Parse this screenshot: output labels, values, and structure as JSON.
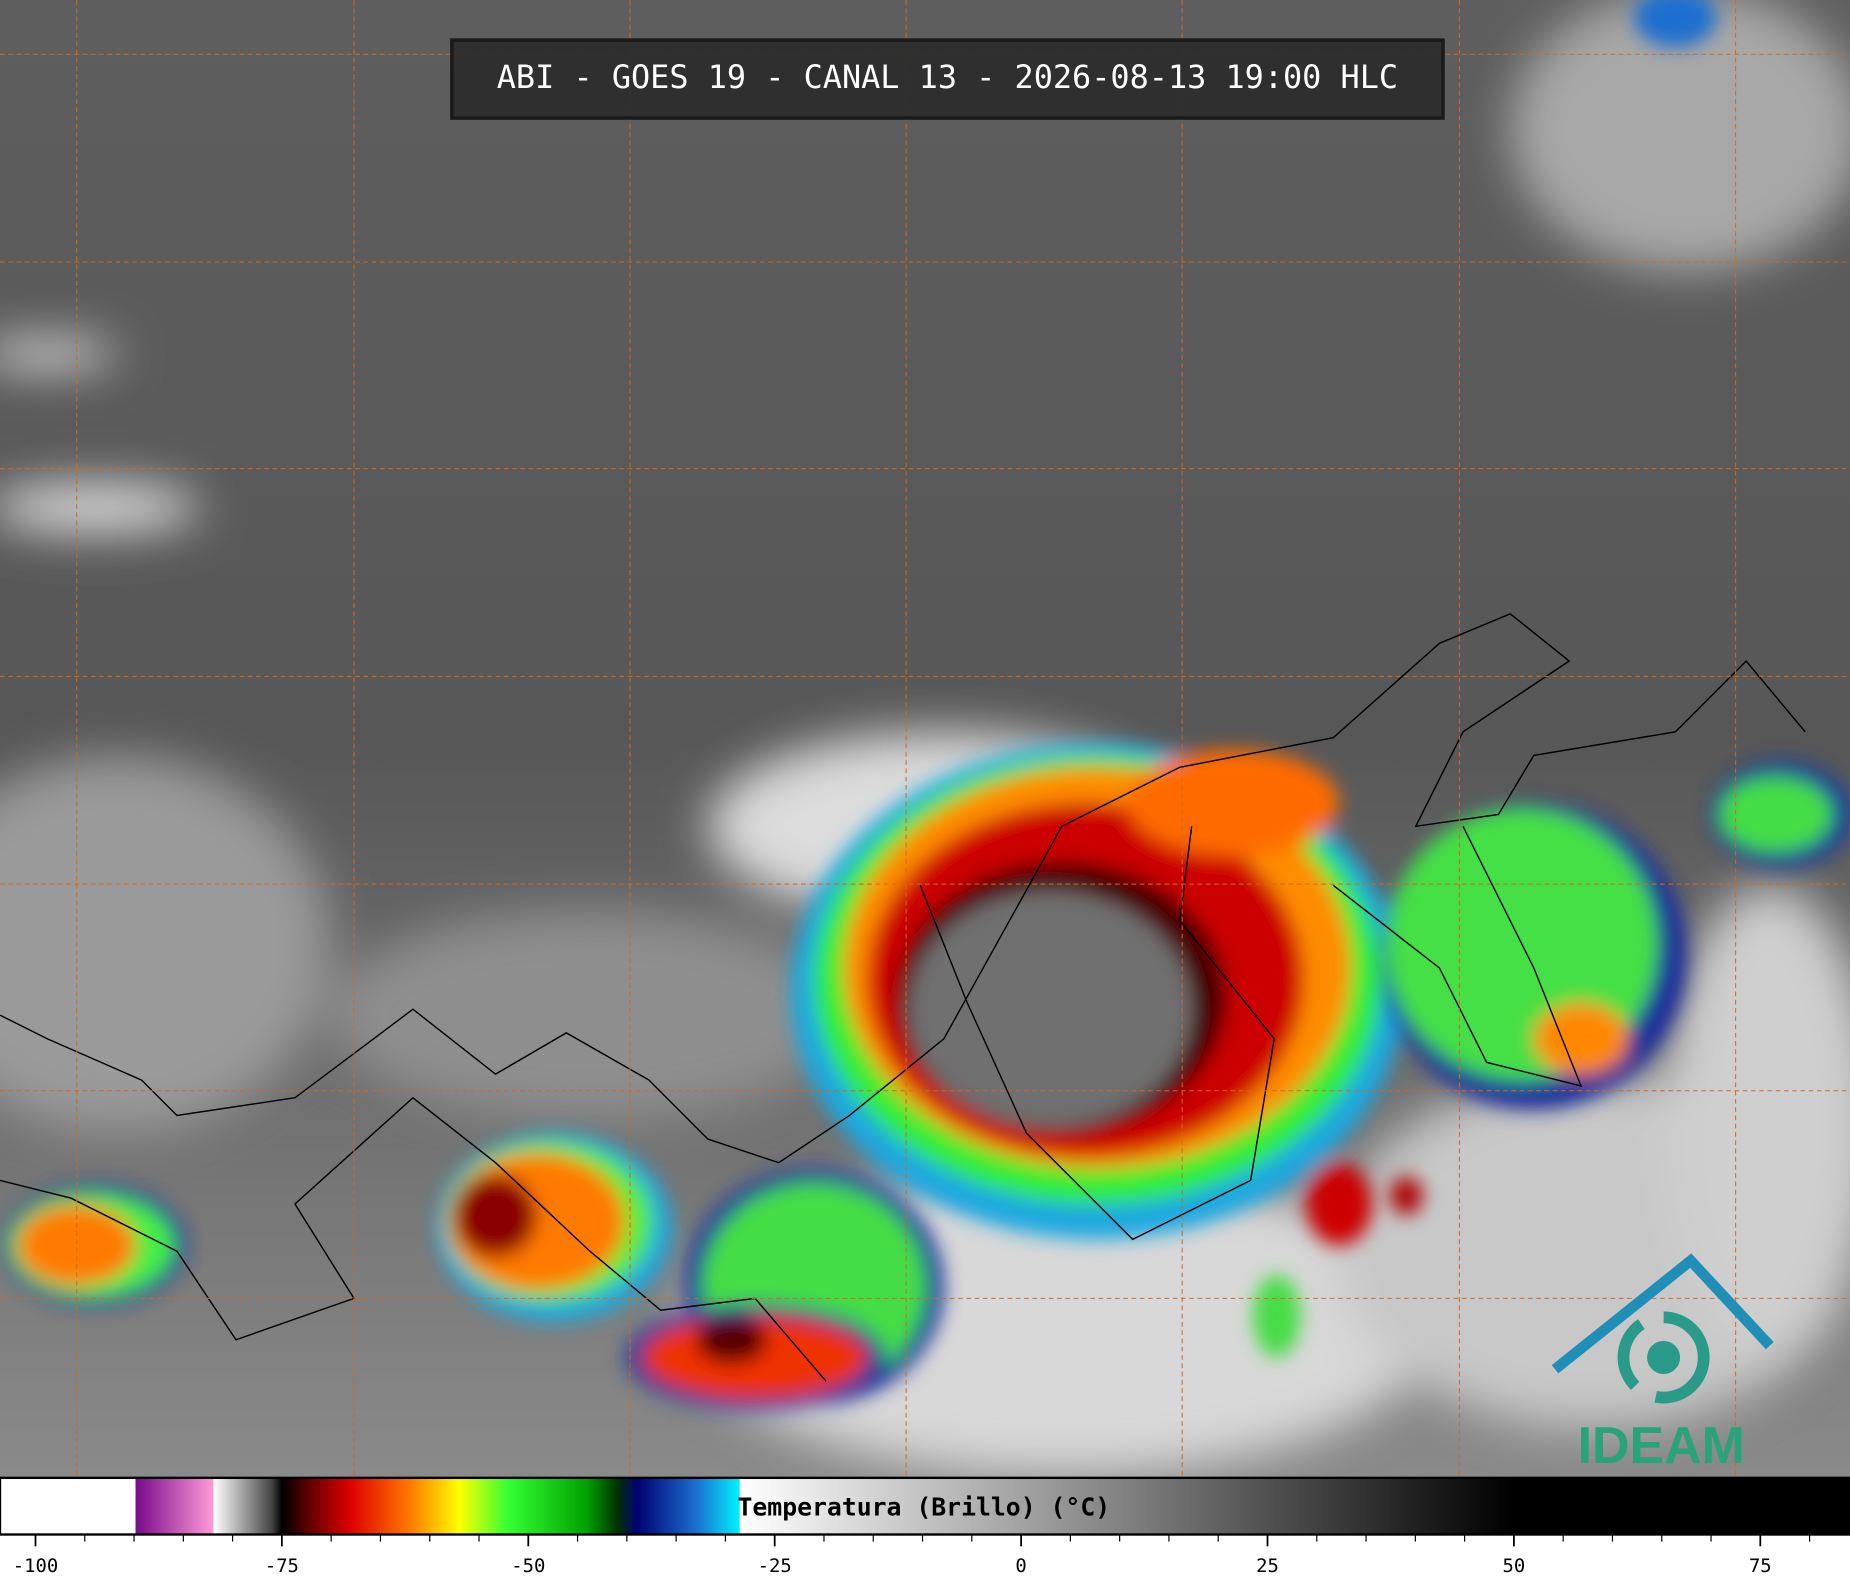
{
  "header": {
    "title": "ABI - GOES 19 - CANAL 13 - 2026-08-13 19:00 HLC"
  },
  "colorbar": {
    "label": "Temperatura (Brillo) (°C)",
    "range": [
      -103.6,
      84.1
    ],
    "ticks": [
      -100,
      -75,
      -50,
      -25,
      0,
      25,
      50,
      75
    ],
    "minor_ticks": [
      -95,
      -90,
      -85,
      -80,
      -70,
      -65,
      -60,
      -55,
      -45,
      -40,
      -35,
      -30,
      -20,
      -15,
      -10,
      -5,
      5,
      10,
      15,
      20,
      30,
      35,
      40,
      45,
      55,
      60,
      65,
      70,
      80
    ],
    "stops": [
      {
        "value": -103.6,
        "color": "#ffffff"
      },
      {
        "value": -89.9,
        "color": "#ffffff"
      },
      {
        "value": -89.8,
        "color": "#7a0a8c"
      },
      {
        "value": -82,
        "color": "#ff9ad8"
      },
      {
        "value": -81.9,
        "color": "#ffffff"
      },
      {
        "value": -76,
        "color": "#444444"
      },
      {
        "value": -75,
        "color": "#000000"
      },
      {
        "value": -72,
        "color": "#6a0000"
      },
      {
        "value": -68,
        "color": "#e00000"
      },
      {
        "value": -62,
        "color": "#ff7a00"
      },
      {
        "value": -57,
        "color": "#ffff00"
      },
      {
        "value": -52,
        "color": "#33ff33"
      },
      {
        "value": -44,
        "color": "#00a000"
      },
      {
        "value": -41,
        "color": "#003300"
      },
      {
        "value": -39,
        "color": "#000070"
      },
      {
        "value": -33,
        "color": "#1a6ed0"
      },
      {
        "value": -28.6,
        "color": "#00f0ff"
      },
      {
        "value": -28.5,
        "color": "#ffffff"
      },
      {
        "value": 50,
        "color": "#000000"
      },
      {
        "value": 84.1,
        "color": "#000000"
      }
    ]
  },
  "logo": {
    "text": "IDEAM"
  }
}
